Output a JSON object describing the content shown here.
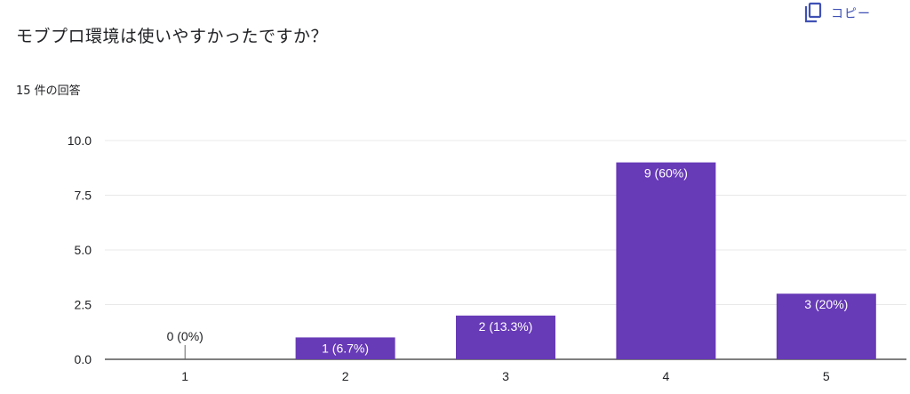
{
  "question": {
    "title": "モブプロ環境は使いやすかったですか？",
    "response_count": "15 件の回答"
  },
  "toolbar": {
    "copy_label": "コピー",
    "copy_icon": "copy-icon"
  },
  "colors": {
    "bar": "#673ab7",
    "text": "#202124",
    "grid": "#e8e8e8",
    "accent": "#3f51b5"
  },
  "chart_data": {
    "type": "bar",
    "categories": [
      "1",
      "2",
      "3",
      "4",
      "5"
    ],
    "values": [
      0,
      1,
      2,
      9,
      3
    ],
    "data_labels": [
      "0 (0%)",
      "1 (6.7%)",
      "2 (13.3%)",
      "9 (60%)",
      "3 (20%)"
    ],
    "y_ticks": [
      "0.0",
      "2.5",
      "5.0",
      "7.5",
      "10.0"
    ],
    "ylim": [
      0,
      10
    ],
    "grid": true,
    "legend": "none"
  }
}
